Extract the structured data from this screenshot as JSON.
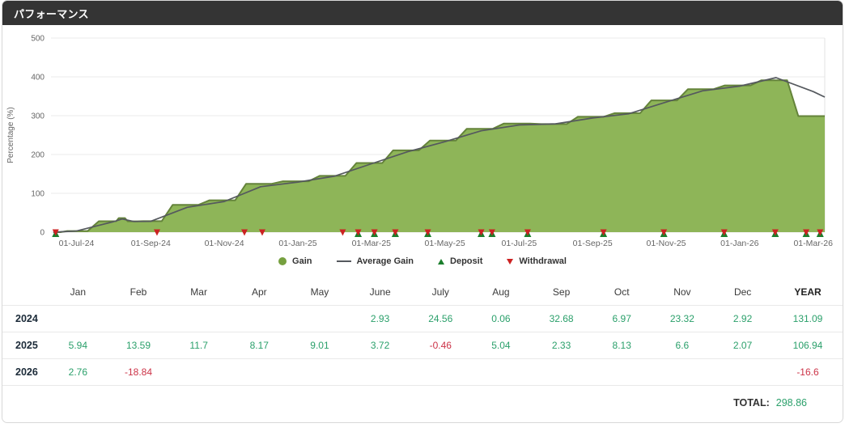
{
  "header": {
    "title": "パフォーマンス"
  },
  "chart_data": {
    "type": "area",
    "title": "",
    "xlabel": "",
    "ylabel": "Percentage (%)",
    "ylim": [
      0,
      500
    ],
    "yticks": [
      0,
      100,
      200,
      300,
      400,
      500
    ],
    "grid": "horizontal",
    "legend_position": "bottom",
    "xticks": [
      {
        "t": 0.033,
        "label": "01-Jul-24"
      },
      {
        "t": 0.129,
        "label": "01-Sep-24"
      },
      {
        "t": 0.224,
        "label": "01-Nov-24"
      },
      {
        "t": 0.319,
        "label": "01-Jan-25"
      },
      {
        "t": 0.414,
        "label": "01-Mar-25"
      },
      {
        "t": 0.509,
        "label": "01-May-25"
      },
      {
        "t": 0.605,
        "label": "01-Jul-25"
      },
      {
        "t": 0.7,
        "label": "01-Sep-25"
      },
      {
        "t": 0.795,
        "label": "01-Nov-25"
      },
      {
        "t": 0.89,
        "label": "01-Jan-26"
      },
      {
        "t": 0.985,
        "label": "01-Mar-26"
      }
    ],
    "series": [
      {
        "name": "Gain",
        "type": "area",
        "fill": "#8eb558",
        "stroke": "#64833a",
        "points": [
          [
            0.003,
            0
          ],
          [
            0.033,
            2.9
          ],
          [
            0.081,
            28.2
          ],
          [
            0.092,
            36.3
          ],
          [
            0.104,
            28.0
          ],
          [
            0.129,
            28.3
          ],
          [
            0.176,
            70.2
          ],
          [
            0.224,
            82.1
          ],
          [
            0.271,
            124.5
          ],
          [
            0.319,
            131.1
          ],
          [
            0.366,
            144.9
          ],
          [
            0.414,
            178.1
          ],
          [
            0.461,
            210.6
          ],
          [
            0.509,
            235.8
          ],
          [
            0.556,
            266.1
          ],
          [
            0.605,
            279.7
          ],
          [
            0.652,
            278.4
          ],
          [
            0.7,
            297.1
          ],
          [
            0.747,
            306.4
          ],
          [
            0.795,
            339.3
          ],
          [
            0.842,
            368.3
          ],
          [
            0.89,
            378.0
          ],
          [
            0.937,
            391.3
          ],
          [
            0.985,
            298.9
          ],
          [
            1.0,
            298.9
          ]
        ]
      },
      {
        "name": "Average Gain",
        "type": "line",
        "color": "#55595e",
        "points": [
          [
            0.003,
            0
          ],
          [
            0.033,
            3
          ],
          [
            0.081,
            27
          ],
          [
            0.092,
            34
          ],
          [
            0.107,
            27.5
          ],
          [
            0.129,
            28
          ],
          [
            0.176,
            64
          ],
          [
            0.224,
            79
          ],
          [
            0.271,
            117
          ],
          [
            0.319,
            129
          ],
          [
            0.366,
            144
          ],
          [
            0.414,
            176
          ],
          [
            0.461,
            207
          ],
          [
            0.509,
            233
          ],
          [
            0.556,
            261
          ],
          [
            0.605,
            276
          ],
          [
            0.652,
            279
          ],
          [
            0.7,
            294
          ],
          [
            0.747,
            305
          ],
          [
            0.795,
            335
          ],
          [
            0.842,
            364
          ],
          [
            0.89,
            376
          ],
          [
            0.937,
            398
          ],
          [
            0.985,
            362
          ],
          [
            1.0,
            348
          ]
        ]
      }
    ],
    "markers": {
      "deposit_color": "#1b7e2c",
      "withdrawal_color": "#cc2222",
      "events": [
        {
          "t": 0.006,
          "type": "deposit_withdrawal"
        },
        {
          "t": 0.137,
          "type": "withdrawal"
        },
        {
          "t": 0.25,
          "type": "withdrawal"
        },
        {
          "t": 0.273,
          "type": "withdrawal"
        },
        {
          "t": 0.377,
          "type": "withdrawal"
        },
        {
          "t": 0.397,
          "type": "deposit_withdrawal"
        },
        {
          "t": 0.418,
          "type": "deposit_withdrawal"
        },
        {
          "t": 0.445,
          "type": "deposit_withdrawal"
        },
        {
          "t": 0.487,
          "type": "deposit_withdrawal"
        },
        {
          "t": 0.556,
          "type": "deposit_withdrawal"
        },
        {
          "t": 0.57,
          "type": "deposit_withdrawal"
        },
        {
          "t": 0.616,
          "type": "deposit_withdrawal"
        },
        {
          "t": 0.714,
          "type": "deposit_withdrawal"
        },
        {
          "t": 0.792,
          "type": "deposit_withdrawal"
        },
        {
          "t": 0.87,
          "type": "deposit_withdrawal"
        },
        {
          "t": 0.936,
          "type": "deposit_withdrawal"
        },
        {
          "t": 0.976,
          "type": "deposit_withdrawal"
        },
        {
          "t": 0.994,
          "type": "deposit_withdrawal"
        }
      ]
    }
  },
  "legend": {
    "items": [
      {
        "label": "Gain",
        "shape": "circle",
        "color": "#76a03f"
      },
      {
        "label": "Average Gain",
        "shape": "line",
        "color": "#55595e"
      },
      {
        "label": "Deposit",
        "shape": "triangle-up",
        "color": "#1b7e2c"
      },
      {
        "label": "Withdrawal",
        "shape": "triangle-down",
        "color": "#cc2222"
      }
    ]
  },
  "table": {
    "columns": [
      "Jan",
      "Feb",
      "Mar",
      "Apr",
      "May",
      "June",
      "July",
      "Aug",
      "Sep",
      "Oct",
      "Nov",
      "Dec",
      "YEAR"
    ],
    "rows": [
      {
        "year": "2024",
        "monthly": [
          "",
          "",
          "",
          "",
          "",
          "2.93",
          "24.56",
          "0.06",
          "32.68",
          "6.97",
          "23.32",
          "2.92"
        ],
        "year_total": "131.09"
      },
      {
        "year": "2025",
        "monthly": [
          "5.94",
          "13.59",
          "11.7",
          "8.17",
          "9.01",
          "3.72",
          "-0.46",
          "5.04",
          "2.33",
          "8.13",
          "6.6",
          "2.07"
        ],
        "year_total": "106.94"
      },
      {
        "year": "2026",
        "monthly": [
          "2.76",
          "-18.84",
          "",
          "",
          "",
          "",
          "",
          "",
          "",
          "",
          "",
          ""
        ],
        "year_total": "-16.6"
      }
    ],
    "total_label": "TOTAL:",
    "total_value": "298.86",
    "positive_color": "#2ba06b",
    "negative_color": "#cc3347"
  }
}
